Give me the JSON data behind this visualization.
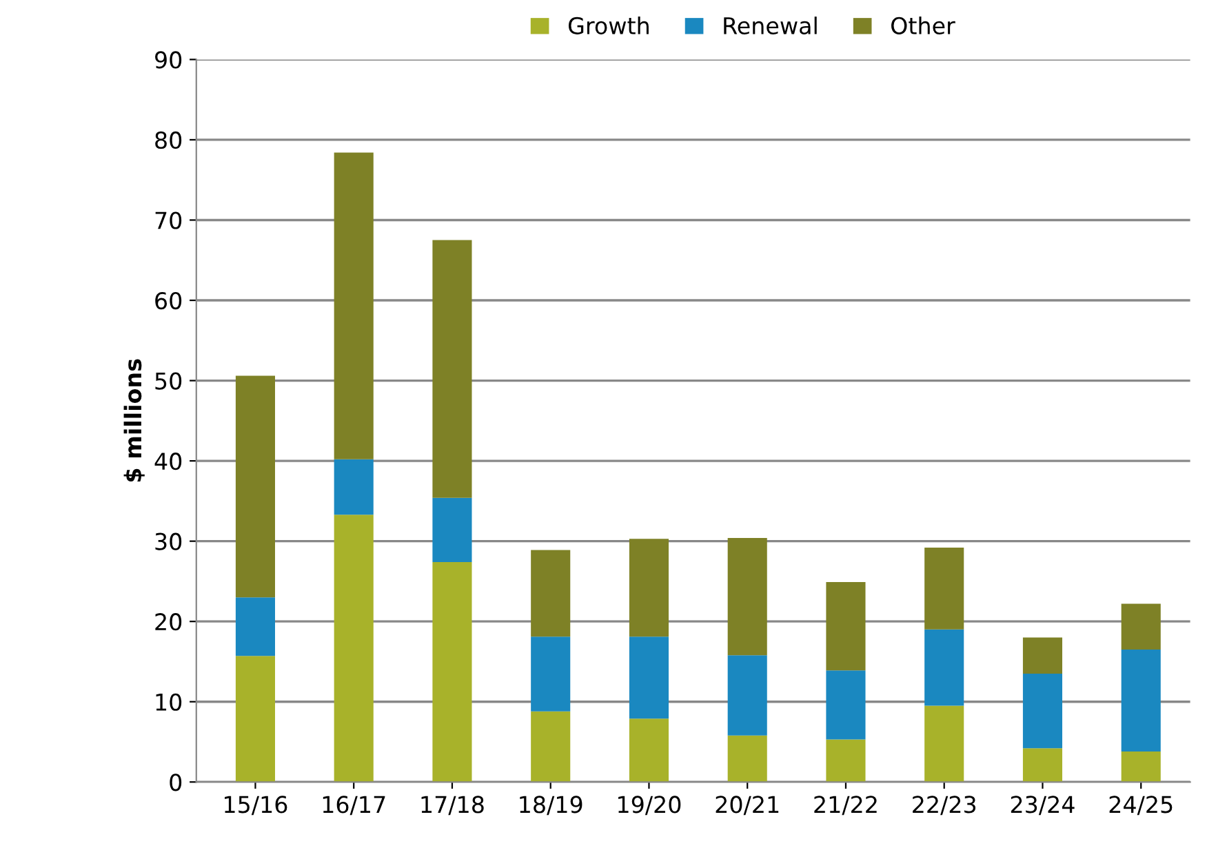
{
  "chart_data": {
    "type": "bar",
    "stacked": true,
    "ylabel": "$ millions",
    "categories": [
      "15/16",
      "16/17",
      "17/18",
      "18/19",
      "19/20",
      "20/21",
      "21/22",
      "22/23",
      "23/24",
      "24/25"
    ],
    "series": [
      {
        "name": "Growth",
        "color": "#a8b22a",
        "values": [
          15.7,
          33.3,
          27.4,
          8.8,
          7.9,
          5.8,
          5.3,
          9.5,
          4.2,
          3.8
        ]
      },
      {
        "name": "Renewal",
        "color": "#1a88c0",
        "values": [
          7.3,
          6.9,
          8.0,
          9.3,
          10.2,
          10.0,
          8.6,
          9.5,
          9.3,
          12.7
        ]
      },
      {
        "name": "Other",
        "color": "#7e8126",
        "values": [
          27.6,
          38.2,
          32.1,
          10.8,
          12.2,
          14.6,
          11.0,
          10.2,
          4.5,
          5.7
        ]
      }
    ],
    "ylim": [
      0,
      90
    ],
    "yticks": [
      0,
      10,
      20,
      30,
      40,
      50,
      60,
      70,
      80,
      90
    ],
    "grid": "y",
    "legend": "top"
  }
}
